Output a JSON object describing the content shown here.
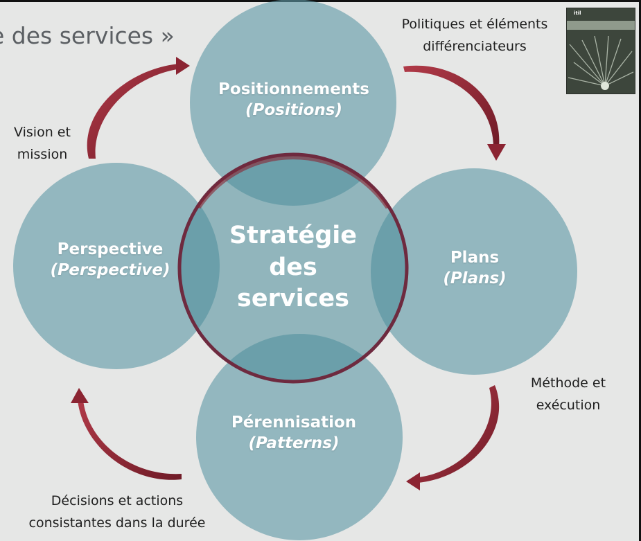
{
  "title": "e des services »",
  "center": {
    "line1": "Stratégie",
    "line2": "des",
    "line3": "services"
  },
  "circles": {
    "top": {
      "fr": "Positionnements",
      "en": "(Positions)"
    },
    "left": {
      "fr": "Perspective",
      "en": "(Perspective)"
    },
    "right": {
      "fr": "Plans",
      "en": "(Plans)"
    },
    "bottom": {
      "fr": "Pérennisation",
      "en": "(Patterns)"
    }
  },
  "side_labels": {
    "top_right": {
      "line1": "Politiques et éléments",
      "line2": "différenciateurs"
    },
    "top_left": {
      "line1": "Vision et",
      "line2": "mission"
    },
    "bottom_right": {
      "line1": "Méthode et",
      "line2": "exécution"
    },
    "bottom_left": {
      "line1": "Décisions et actions",
      "line2": "consistantes dans la durée"
    }
  },
  "cover": {
    "logo": "itil"
  },
  "colors": {
    "background": "#e6e7e6",
    "circle": "#5f9aa6",
    "center_ring": "#6e2a3f",
    "arrow": "#8b2432",
    "text": "#1e1e1e"
  }
}
